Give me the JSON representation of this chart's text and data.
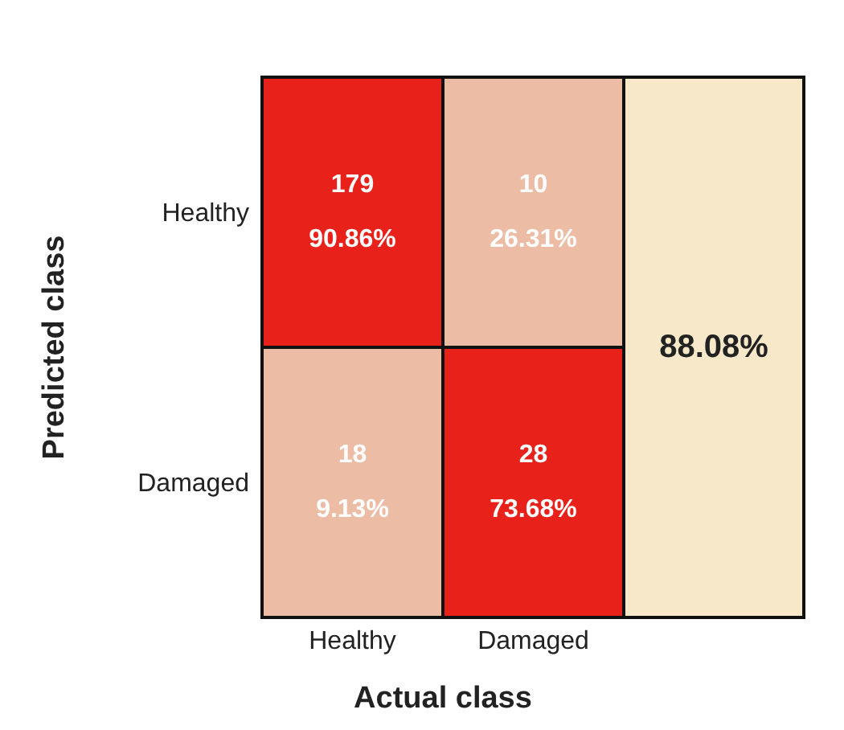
{
  "chart_data": {
    "type": "heatmap",
    "xlabel": "Actual class",
    "ylabel": "Predicted class",
    "categories": [
      "Healthy",
      "Damaged"
    ],
    "y_categories": [
      "Healthy",
      "Damaged"
    ],
    "cells": [
      [
        179,
        10
      ],
      [
        18,
        28
      ]
    ],
    "colors": [
      [
        "#e8221a",
        "#edbca4"
      ],
      [
        "#edbca4",
        "#e8221a"
      ]
    ],
    "data_labels": true,
    "annotations": [
      "90.86%",
      "26.31%",
      "9.13%",
      "73.68%",
      "88.08%"
    ]
  }
}
